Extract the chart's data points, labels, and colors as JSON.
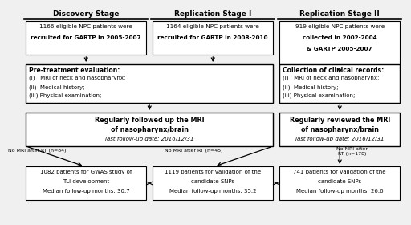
{
  "bg_color": "#f0f0f0",
  "stages": [
    "Discovery Stage",
    "Replication Stage I",
    "Replication Stage II"
  ],
  "box1": [
    "1166 eligible NPC patients were\nrecruited for GARTP in 2005-2007",
    "1164 eligible NPC patients were\nrecruited for GARTP in 2008-2010",
    "919 eligible NPC patients were\ncollected in 2002-2004\n& GARTP 2005-2007"
  ],
  "box2_left_title": "Pre-treatment evaluation:",
  "box2_left_items": [
    "(i)   MRI of neck and nasopharynx;",
    "(ii)  Medical history;",
    "(iii) Physical examination;"
  ],
  "box2_right_title": "Collection of clinical records:",
  "box2_right_items": [
    "(i)   MRI of neck and nasopharynx;",
    "(ii)  Medical history;",
    "(iii) Physical examination;"
  ],
  "box3_left_line1": "Regularly followed up the MRI",
  "box3_left_line2": "of nasopharynx/brain",
  "box3_left_sub": "last follow-up date: 2016/12/31",
  "box3_right_line1": "Regularly reviewed the MRI",
  "box3_right_line2": "of nasopharynx/brain",
  "box3_right_sub": "last follow-up date: 2016/12/31",
  "exclusion_left1": "No MRI after RT (n=84)",
  "exclusion_left2": "No MRI after RT (n=45)",
  "exclusion_right": "No MRI after\nRT (n=178)",
  "box4_1_lines": [
    "1082 patients for GWAS study of",
    "TLI development",
    "Median follow-up months: 30.7"
  ],
  "box4_2_lines": [
    "1119 patients for validation of the",
    "candidate SNPs",
    "Median follow-up months: 35.2"
  ],
  "box4_3_lines": [
    "741 patients for validation of the",
    "candidate SNPs",
    "Median follow-up months: 26.6"
  ]
}
